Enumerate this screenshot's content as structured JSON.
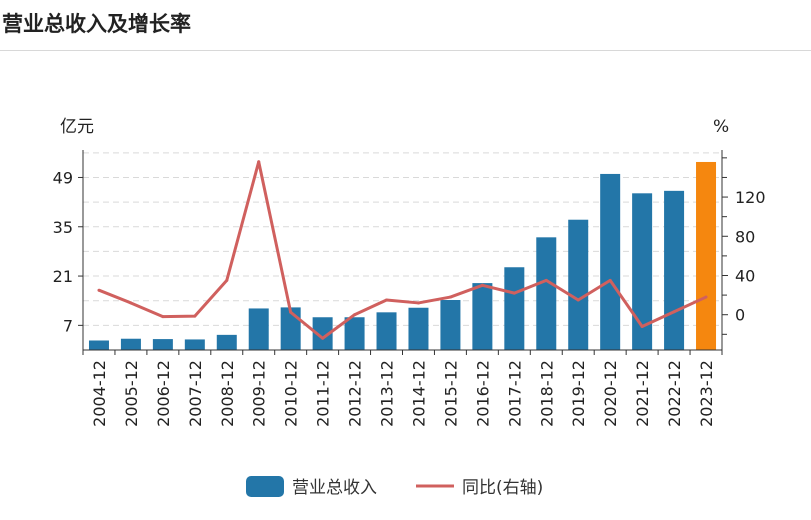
{
  "title": "营业总收入及增长率",
  "chart_data": {
    "type": "bar",
    "categories": [
      "2004-12",
      "2005-12",
      "2006-12",
      "2007-12",
      "2008-12",
      "2009-12",
      "2010-12",
      "2011-12",
      "2012-12",
      "2013-12",
      "2014-12",
      "2015-12",
      "2016-12",
      "2017-12",
      "2018-12",
      "2019-12",
      "2020-12",
      "2021-12",
      "2022-12",
      "2023-12"
    ],
    "series": [
      {
        "name": "营业总收入",
        "kind": "bar",
        "axis": "left",
        "values": [
          2.7,
          3.2,
          3.1,
          3.0,
          4.3,
          11.8,
          12.1,
          9.3,
          9.3,
          10.7,
          12.0,
          14.2,
          19.0,
          23.5,
          32.0,
          37.0,
          50.0,
          44.5,
          45.2,
          53.4
        ],
        "color": "#2376a8",
        "highlight_color": "#f5870f",
        "highlight_index": 19
      },
      {
        "name": "同比(右轴)",
        "kind": "line",
        "axis": "right",
        "values": [
          25,
          12,
          -2,
          -1.5,
          35,
          156,
          2.5,
          -24,
          0,
          15,
          12,
          18,
          30,
          22,
          35,
          15,
          35,
          -12,
          3,
          18
        ],
        "color": "#d0605e"
      }
    ],
    "y_left": {
      "unit": "亿元",
      "ticks": [
        7,
        21,
        35,
        49
      ],
      "range": [
        0,
        56.8
      ]
    },
    "y_right": {
      "unit": "%",
      "ticks": [
        0,
        40,
        80,
        120
      ],
      "range": [
        -36,
        168
      ]
    },
    "grid": true,
    "legend_position": "bottom"
  }
}
